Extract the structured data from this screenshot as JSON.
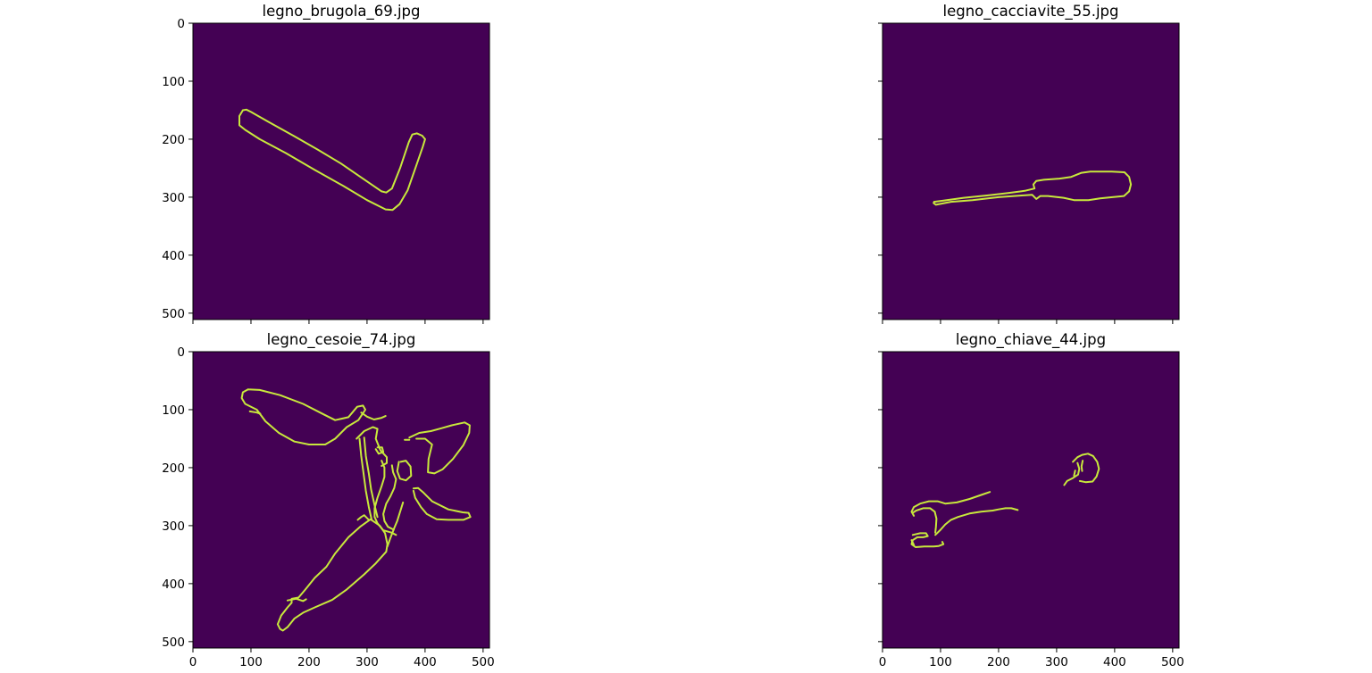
{
  "chart_data": [
    {
      "type": "image",
      "title": "legno_brugola_69.jpg",
      "xlim": [
        0,
        511
      ],
      "ylim": [
        511,
        0
      ],
      "xticks": [
        0,
        100,
        200,
        300,
        400,
        500
      ],
      "yticks": [
        0,
        100,
        200,
        300,
        400,
        500
      ],
      "x_tick_labels_visible": false,
      "y_tick_labels_visible": true,
      "background_color": "#440154",
      "edge_color": "#c8e83c",
      "edges": [
        [
          [
            80,
            160
          ],
          [
            86,
            150
          ],
          [
            92,
            149
          ],
          [
            100,
            153
          ],
          [
            130,
            170
          ],
          [
            175,
            195
          ],
          [
            215,
            218
          ],
          [
            255,
            242
          ],
          [
            290,
            266
          ],
          [
            325,
            290
          ],
          [
            333,
            292
          ],
          [
            343,
            285
          ],
          [
            357,
            250
          ],
          [
            372,
            205
          ],
          [
            378,
            192
          ],
          [
            386,
            190
          ],
          [
            395,
            194
          ],
          [
            400,
            200
          ],
          [
            396,
            213
          ],
          [
            384,
            248
          ],
          [
            370,
            288
          ],
          [
            356,
            312
          ],
          [
            344,
            322
          ],
          [
            332,
            321
          ],
          [
            300,
            305
          ],
          [
            260,
            281
          ],
          [
            210,
            253
          ],
          [
            160,
            224
          ],
          [
            115,
            200
          ],
          [
            90,
            184
          ],
          [
            80,
            176
          ],
          [
            80,
            160
          ]
        ]
      ]
    },
    {
      "type": "image",
      "title": "legno_cacciavite_55.jpg",
      "xlim": [
        0,
        511
      ],
      "ylim": [
        511,
        0
      ],
      "xticks": [
        0,
        100,
        200,
        300,
        400,
        500
      ],
      "yticks": [
        0,
        100,
        200,
        300,
        400,
        500
      ],
      "x_tick_labels_visible": false,
      "y_tick_labels_visible": false,
      "background_color": "#440154",
      "edge_color": "#c8e83c",
      "edges": [
        [
          [
            89,
            308
          ],
          [
            105,
            306
          ],
          [
            140,
            301
          ],
          [
            180,
            297
          ],
          [
            215,
            293
          ],
          [
            245,
            289
          ],
          [
            262,
            285
          ],
          [
            260,
            278
          ],
          [
            265,
            272
          ],
          [
            278,
            270
          ],
          [
            305,
            268
          ],
          [
            325,
            265
          ],
          [
            343,
            258
          ],
          [
            358,
            256
          ],
          [
            395,
            256
          ],
          [
            417,
            257
          ],
          [
            425,
            265
          ],
          [
            428,
            278
          ],
          [
            425,
            290
          ],
          [
            416,
            298
          ],
          [
            396,
            300
          ],
          [
            375,
            302
          ],
          [
            355,
            305
          ],
          [
            330,
            305
          ],
          [
            312,
            301
          ],
          [
            285,
            298
          ],
          [
            272,
            298
          ],
          [
            265,
            303
          ],
          [
            258,
            296
          ],
          [
            240,
            297
          ],
          [
            200,
            300
          ],
          [
            155,
            305
          ],
          [
            118,
            308
          ],
          [
            92,
            313
          ],
          [
            88,
            310
          ],
          [
            89,
            308
          ]
        ]
      ]
    },
    {
      "type": "image",
      "title": "legno_cesoie_74.jpg",
      "xlim": [
        0,
        511
      ],
      "ylim": [
        511,
        0
      ],
      "xticks": [
        0,
        100,
        200,
        300,
        400,
        500
      ],
      "yticks": [
        0,
        100,
        200,
        300,
        400,
        500
      ],
      "x_tick_labels_visible": true,
      "y_tick_labels_visible": true,
      "background_color": "#440154",
      "edge_color": "#c8e83c",
      "edges": [
        [
          [
            95,
            65
          ],
          [
            115,
            66
          ],
          [
            150,
            75
          ],
          [
            190,
            90
          ],
          [
            225,
            108
          ],
          [
            245,
            118
          ],
          [
            268,
            113
          ],
          [
            283,
            95
          ],
          [
            293,
            93
          ],
          [
            297,
            100
          ],
          [
            285,
            118
          ],
          [
            265,
            130
          ],
          [
            245,
            150
          ],
          [
            228,
            160
          ],
          [
            200,
            160
          ],
          [
            175,
            155
          ],
          [
            148,
            140
          ],
          [
            125,
            120
          ],
          [
            110,
            100
          ],
          [
            90,
            90
          ],
          [
            84,
            80
          ],
          [
            86,
            70
          ],
          [
            95,
            65
          ]
        ],
        [
          [
            98,
            103
          ],
          [
            110,
            105
          ],
          [
            116,
            107
          ]
        ],
        [
          [
            290,
            105
          ],
          [
            300,
            112
          ],
          [
            312,
            117
          ],
          [
            325,
            114
          ],
          [
            332,
            111
          ]
        ],
        [
          [
            282,
            150
          ],
          [
            295,
            137
          ],
          [
            310,
            130
          ],
          [
            318,
            133
          ],
          [
            315,
            150
          ],
          [
            323,
            170
          ],
          [
            334,
            182
          ],
          [
            334,
            192
          ],
          [
            325,
            197
          ]
        ],
        [
          [
            373,
            148
          ],
          [
            390,
            140
          ],
          [
            410,
            137
          ],
          [
            428,
            132
          ],
          [
            446,
            127
          ],
          [
            468,
            122
          ],
          [
            477,
            127
          ],
          [
            476,
            140
          ],
          [
            466,
            161
          ],
          [
            448,
            185
          ],
          [
            430,
            203
          ],
          [
            416,
            210
          ],
          [
            405,
            208
          ],
          [
            406,
            185
          ],
          [
            412,
            160
          ],
          [
            400,
            150
          ],
          [
            385,
            150
          ]
        ],
        [
          [
            365,
            152
          ],
          [
            373,
            152
          ]
        ],
        [
          [
            380,
            236
          ],
          [
            388,
            235
          ],
          [
            396,
            242
          ],
          [
            412,
            258
          ],
          [
            440,
            272
          ],
          [
            465,
            277
          ],
          [
            475,
            278
          ],
          [
            478,
            285
          ],
          [
            466,
            290
          ],
          [
            440,
            290
          ],
          [
            420,
            289
          ],
          [
            403,
            280
          ],
          [
            393,
            268
          ],
          [
            383,
            252
          ],
          [
            380,
            240
          ]
        ],
        [
          [
            362,
            260
          ],
          [
            352,
            292
          ],
          [
            347,
            304
          ],
          [
            340,
            322
          ],
          [
            335,
            336
          ]
        ],
        [
          [
            355,
            190
          ],
          [
            352,
            206
          ],
          [
            357,
            219
          ],
          [
            367,
            222
          ],
          [
            376,
            214
          ],
          [
            375,
            198
          ],
          [
            367,
            188
          ],
          [
            358,
            190
          ]
        ],
        [
          [
            315,
            168
          ],
          [
            320,
            176
          ],
          [
            328,
            173
          ],
          [
            326,
            165
          ],
          [
            318,
            165
          ]
        ],
        [
          [
            325,
            188
          ],
          [
            330,
            200
          ],
          [
            330,
            216
          ],
          [
            325,
            232
          ],
          [
            318,
            252
          ],
          [
            313,
            270
          ],
          [
            313,
            285
          ],
          [
            318,
            296
          ],
          [
            328,
            308
          ],
          [
            342,
            312
          ],
          [
            350,
            316
          ]
        ],
        [
          [
            343,
            196
          ],
          [
            345,
            208
          ],
          [
            350,
            220
          ],
          [
            347,
            235
          ],
          [
            340,
            250
          ],
          [
            333,
            262
          ],
          [
            328,
            280
          ],
          [
            330,
            292
          ],
          [
            336,
            302
          ],
          [
            346,
            307
          ]
        ],
        [
          [
            295,
            148
          ],
          [
            298,
            180
          ],
          [
            303,
            210
          ],
          [
            307,
            238
          ],
          [
            313,
            265
          ],
          [
            318,
            285
          ]
        ],
        [
          [
            287,
            150
          ],
          [
            290,
            180
          ],
          [
            294,
            210
          ],
          [
            298,
            240
          ],
          [
            303,
            268
          ],
          [
            308,
            290
          ]
        ],
        [
          [
            284,
            290
          ],
          [
            290,
            285
          ],
          [
            295,
            282
          ],
          [
            303,
            290
          ]
        ],
        [
          [
            150,
            478
          ],
          [
            155,
            481
          ],
          [
            163,
            475
          ],
          [
            175,
            460
          ],
          [
            190,
            450
          ],
          [
            210,
            441
          ],
          [
            240,
            428
          ],
          [
            265,
            410
          ],
          [
            295,
            384
          ],
          [
            315,
            365
          ],
          [
            333,
            345
          ],
          [
            335,
            332
          ],
          [
            331,
            313
          ],
          [
            322,
            300
          ],
          [
            306,
            289
          ],
          [
            288,
            302
          ],
          [
            268,
            320
          ],
          [
            245,
            348
          ],
          [
            230,
            371
          ],
          [
            210,
            390
          ],
          [
            193,
            411
          ],
          [
            182,
            424
          ],
          [
            170,
            426
          ],
          [
            170,
            433
          ],
          [
            163,
            441
          ],
          [
            152,
            455
          ],
          [
            146,
            470
          ],
          [
            150,
            478
          ]
        ],
        [
          [
            163,
            429
          ],
          [
            178,
            426
          ],
          [
            190,
            430
          ],
          [
            195,
            427
          ]
        ]
      ]
    },
    {
      "type": "image",
      "title": "legno_chiave_44.jpg",
      "xlim": [
        0,
        511
      ],
      "ylim": [
        511,
        0
      ],
      "xticks": [
        0,
        100,
        200,
        300,
        400,
        500
      ],
      "yticks": [
        0,
        100,
        200,
        300,
        400,
        500
      ],
      "x_tick_labels_visible": true,
      "y_tick_labels_visible": false,
      "background_color": "#440154",
      "edge_color": "#c8e83c",
      "edges": [
        [
          [
            54,
            283
          ],
          [
            50,
            276
          ],
          [
            54,
            268
          ],
          [
            65,
            262
          ],
          [
            80,
            258
          ],
          [
            95,
            258
          ],
          [
            108,
            262
          ],
          [
            128,
            260
          ],
          [
            150,
            254
          ],
          [
            170,
            247
          ],
          [
            185,
            242
          ]
        ],
        [
          [
            52,
            278
          ],
          [
            58,
            274
          ],
          [
            70,
            270
          ],
          [
            82,
            270
          ],
          [
            90,
            276
          ],
          [
            93,
            288
          ],
          [
            92,
            302
          ],
          [
            91,
            312
          ]
        ],
        [
          [
            52,
            316
          ],
          [
            65,
            313
          ],
          [
            75,
            313
          ],
          [
            78,
            318
          ],
          [
            70,
            320
          ],
          [
            60,
            320
          ],
          [
            52,
            325
          ],
          [
            50,
            332
          ],
          [
            57,
            337
          ],
          [
            72,
            336
          ],
          [
            88,
            336
          ],
          [
            97,
            335
          ],
          [
            105,
            332
          ],
          [
            103,
            328
          ]
        ],
        [
          [
            50,
            325
          ],
          [
            54,
            333
          ]
        ],
        [
          [
            91,
            316
          ],
          [
            100,
            307
          ],
          [
            108,
            298
          ],
          [
            118,
            290
          ],
          [
            130,
            285
          ],
          [
            150,
            279
          ],
          [
            170,
            276
          ],
          [
            190,
            274
          ],
          [
            200,
            272
          ],
          [
            212,
            270
          ],
          [
            222,
            270
          ],
          [
            233,
            273
          ]
        ],
        [
          [
            328,
            190
          ],
          [
            336,
            182
          ],
          [
            344,
            178
          ],
          [
            354,
            176
          ],
          [
            363,
            180
          ],
          [
            370,
            190
          ],
          [
            373,
            202
          ],
          [
            369,
            215
          ],
          [
            362,
            224
          ],
          [
            350,
            225
          ],
          [
            340,
            223
          ]
        ],
        [
          [
            336,
            192
          ],
          [
            339,
            202
          ],
          [
            337,
            212
          ],
          [
            328,
            218
          ],
          [
            318,
            223
          ],
          [
            313,
            230
          ]
        ],
        [
          [
            345,
            188
          ],
          [
            343,
            198
          ],
          [
            344,
            206
          ]
        ],
        [
          [
            332,
            205
          ],
          [
            330,
            214
          ]
        ]
      ]
    }
  ]
}
